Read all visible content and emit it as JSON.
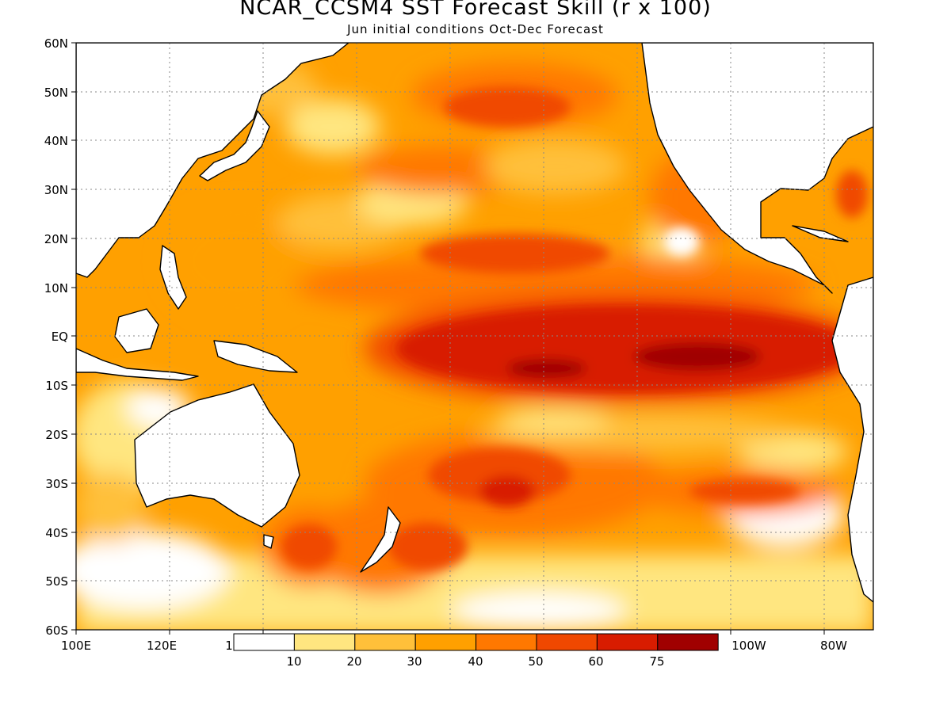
{
  "title": "NCAR_CCSM4 SST Forecast Skill (r x 100)",
  "subtitle": "Jun initial conditions  Oct-Dec Forecast",
  "map": {
    "type": "filled-contour-map",
    "region": "Pacific Ocean",
    "lat_range": [
      "60S",
      "60N"
    ],
    "lon_range": [
      "100E",
      "70W"
    ],
    "grid": true,
    "lat_labels": [
      "60N",
      "50N",
      "40N",
      "30N",
      "20N",
      "10N",
      "EQ",
      "10S",
      "20S",
      "30S",
      "40S",
      "50S",
      "60S"
    ],
    "lon_labels": [
      "100E",
      "120E",
      "1",
      "100W",
      "80W"
    ]
  },
  "colorbar": {
    "labels": [
      "10",
      "20",
      "30",
      "40",
      "50",
      "60",
      "75"
    ],
    "colors": [
      "#ffffff",
      "#ffe680",
      "#ffc03a",
      "#ffa000",
      "#ff7800",
      "#f04800",
      "#d81c00",
      "#a00000"
    ]
  }
}
